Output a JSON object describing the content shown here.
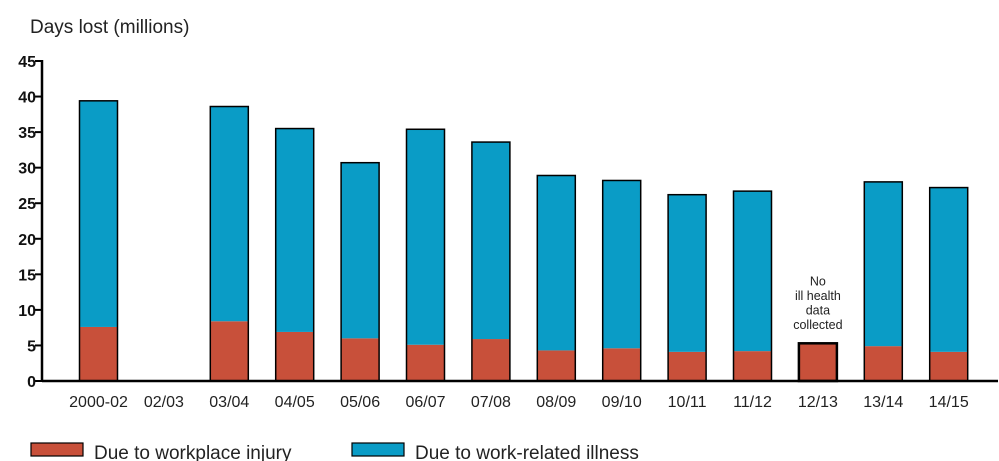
{
  "chart_data": {
    "type": "bar",
    "stacked": true,
    "title": "",
    "xlabel": "",
    "ylabel": "Days lost (millions)",
    "ylim": [
      0,
      45
    ],
    "yticks": [
      "0",
      "5",
      "10",
      "15",
      "20",
      "25",
      "30",
      "35",
      "40",
      "45"
    ],
    "categories": [
      "2000-02",
      "02/03",
      "03/04",
      "04/05",
      "05/06",
      "06/07",
      "07/08",
      "08/09",
      "09/10",
      "10/11",
      "11/12",
      "12/13",
      "13/14",
      "14/15"
    ],
    "series": [
      {
        "name": "Due to workplace injury",
        "color": "#c8503a",
        "values": [
          7.6,
          null,
          8.4,
          6.9,
          6.0,
          5.1,
          5.9,
          4.3,
          4.6,
          4.1,
          4.2,
          5.3,
          4.9,
          4.1
        ]
      },
      {
        "name": "Due to work-related illness",
        "color": "#0a9cc6",
        "values": [
          31.8,
          null,
          30.2,
          28.6,
          24.7,
          30.3,
          27.7,
          24.6,
          23.6,
          22.1,
          22.5,
          null,
          23.1,
          23.1
        ]
      }
    ],
    "annotation": {
      "category": "12/13",
      "lines": [
        "No",
        "ill health",
        "data",
        "collected"
      ]
    },
    "legend_position": "bottom",
    "grid": false
  }
}
